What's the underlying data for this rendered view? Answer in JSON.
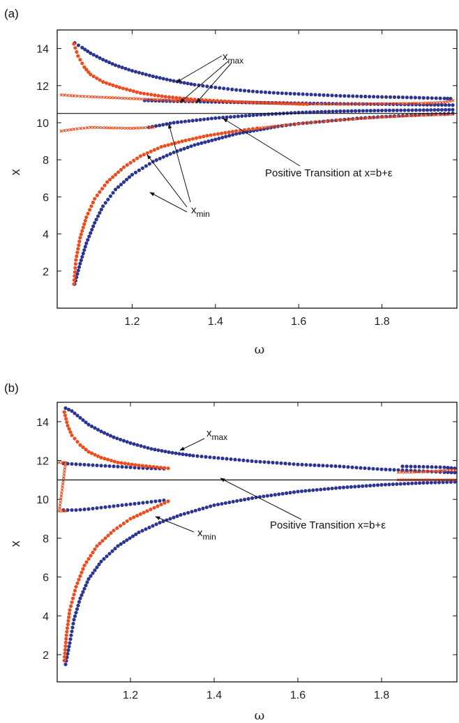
{
  "chart_data": [
    {
      "type": "scatter",
      "panel_label": "(a)",
      "xlabel": "ω",
      "ylabel": "x",
      "xlim": [
        1.02,
        1.98
      ],
      "ylim": [
        0,
        15
      ],
      "xticks": [
        1.2,
        1.4,
        1.6,
        1.8
      ],
      "yticks": [
        2,
        4,
        6,
        8,
        10,
        12,
        14
      ],
      "hline_y": 10.5,
      "series_colors": {
        "blue": "#2a3591",
        "orange": "#ee4b1e"
      },
      "series": [
        {
          "marker": "dot",
          "color": "blue",
          "points": [
            [
              1.062,
              14.3
            ],
            [
              1.08,
              14.05
            ],
            [
              1.1,
              13.75
            ],
            [
              1.13,
              13.4
            ],
            [
              1.16,
              13.1
            ],
            [
              1.2,
              12.8
            ],
            [
              1.25,
              12.5
            ],
            [
              1.3,
              12.25
            ],
            [
              1.35,
              12.05
            ],
            [
              1.4,
              11.9
            ],
            [
              1.45,
              11.77
            ],
            [
              1.5,
              11.67
            ],
            [
              1.55,
              11.6
            ],
            [
              1.6,
              11.55
            ],
            [
              1.65,
              11.5
            ],
            [
              1.7,
              11.45
            ],
            [
              1.75,
              11.42
            ],
            [
              1.8,
              11.39
            ],
            [
              1.85,
              11.37
            ],
            [
              1.9,
              11.34
            ],
            [
              1.95,
              11.31
            ],
            [
              1.965,
              11.3
            ]
          ]
        },
        {
          "marker": "dot",
          "color": "blue",
          "points": [
            [
              1.062,
              1.3
            ],
            [
              1.075,
              2.4
            ],
            [
              1.09,
              3.5
            ],
            [
              1.11,
              4.6
            ],
            [
              1.13,
              5.5
            ],
            [
              1.16,
              6.4
            ],
            [
              1.2,
              7.2
            ],
            [
              1.25,
              7.9
            ],
            [
              1.3,
              8.4
            ],
            [
              1.35,
              8.8
            ],
            [
              1.4,
              9.1
            ],
            [
              1.45,
              9.4
            ],
            [
              1.5,
              9.6
            ],
            [
              1.55,
              9.8
            ],
            [
              1.6,
              9.95
            ],
            [
              1.65,
              10.05
            ],
            [
              1.7,
              10.15
            ],
            [
              1.75,
              10.25
            ],
            [
              1.8,
              10.32
            ],
            [
              1.85,
              10.38
            ],
            [
              1.9,
              10.44
            ],
            [
              1.95,
              10.48
            ],
            [
              1.97,
              10.5
            ]
          ]
        },
        {
          "marker": "dot",
          "color": "blue",
          "points": [
            [
              1.23,
              11.2
            ],
            [
              1.3,
              11.16
            ],
            [
              1.4,
              11.12
            ],
            [
              1.5,
              11.08
            ],
            [
              1.6,
              11.05
            ],
            [
              1.7,
              11.02
            ],
            [
              1.8,
              11.0
            ],
            [
              1.9,
              10.97
            ],
            [
              1.97,
              10.95
            ]
          ]
        },
        {
          "marker": "dot",
          "color": "blue",
          "points": [
            [
              1.24,
              9.75
            ],
            [
              1.3,
              10.0
            ],
            [
              1.4,
              10.25
            ],
            [
              1.5,
              10.42
            ],
            [
              1.6,
              10.55
            ],
            [
              1.7,
              10.62
            ],
            [
              1.8,
              10.66
            ],
            [
              1.9,
              10.68
            ],
            [
              1.97,
              10.7
            ]
          ]
        },
        {
          "marker": "dot",
          "color": "orange",
          "points": [
            [
              1.06,
              14.25
            ],
            [
              1.07,
              13.6
            ],
            [
              1.085,
              13.0
            ],
            [
              1.1,
              12.6
            ],
            [
              1.13,
              12.2
            ],
            [
              1.17,
              11.9
            ],
            [
              1.22,
              11.6
            ],
            [
              1.28,
              11.4
            ],
            [
              1.35,
              11.25
            ],
            [
              1.45,
              11.12
            ],
            [
              1.55,
              11.05
            ],
            [
              1.62,
              11.0
            ]
          ]
        },
        {
          "marker": "dot",
          "color": "orange",
          "points": [
            [
              1.06,
              1.3
            ],
            [
              1.065,
              2.6
            ],
            [
              1.075,
              3.8
            ],
            [
              1.09,
              4.9
            ],
            [
              1.11,
              5.9
            ],
            [
              1.14,
              6.8
            ],
            [
              1.18,
              7.6
            ],
            [
              1.22,
              8.2
            ],
            [
              1.27,
              8.7
            ],
            [
              1.32,
              9.0
            ],
            [
              1.38,
              9.3
            ],
            [
              1.45,
              9.55
            ],
            [
              1.5,
              9.7
            ]
          ]
        },
        {
          "marker": "cross",
          "color": "orange",
          "points": [
            [
              1.03,
              11.5
            ],
            [
              1.06,
              11.45
            ],
            [
              1.1,
              11.4
            ],
            [
              1.15,
              11.35
            ],
            [
              1.2,
              11.3
            ],
            [
              1.25,
              11.25
            ],
            [
              1.3,
              11.2
            ],
            [
              1.35,
              11.15
            ]
          ]
        },
        {
          "marker": "cross",
          "color": "orange",
          "points": [
            [
              1.03,
              9.55
            ],
            [
              1.06,
              9.65
            ],
            [
              1.1,
              9.75
            ],
            [
              1.15,
              9.72
            ],
            [
              1.2,
              9.7
            ],
            [
              1.25,
              9.75
            ]
          ]
        },
        {
          "marker": "cross",
          "color": "orange",
          "points": [
            [
              1.5,
              9.7
            ],
            [
              1.6,
              9.95
            ],
            [
              1.7,
              10.15
            ],
            [
              1.8,
              10.3
            ],
            [
              1.9,
              10.4
            ],
            [
              1.97,
              10.45
            ]
          ]
        },
        {
          "marker": "cross",
          "color": "orange",
          "points": [
            [
              1.6,
              11.0
            ],
            [
              1.7,
              11.0
            ],
            [
              1.8,
              11.02
            ],
            [
              1.9,
              11.05
            ],
            [
              1.95,
              11.1
            ],
            [
              1.97,
              11.2
            ]
          ]
        }
      ],
      "annotations": [
        {
          "text": "x",
          "sub": "max"
        },
        {
          "text": "x",
          "sub": "min"
        },
        {
          "text": "Positive Transition at x=b+ε"
        }
      ]
    },
    {
      "type": "scatter",
      "panel_label": "(b)",
      "xlabel": "ω",
      "ylabel": "x",
      "xlim": [
        1.025,
        1.98
      ],
      "ylim": [
        0.6,
        15
      ],
      "xticks": [
        1.2,
        1.4,
        1.6,
        1.8
      ],
      "yticks": [
        2,
        4,
        6,
        8,
        10,
        12,
        14
      ],
      "hline_y": 11.0,
      "series_colors": {
        "blue": "#2a3591",
        "orange": "#ee4b1e"
      },
      "series": [
        {
          "marker": "dot",
          "color": "blue",
          "points": [
            [
              1.045,
              14.7
            ],
            [
              1.06,
              14.55
            ],
            [
              1.08,
              14.2
            ],
            [
              1.1,
              13.85
            ],
            [
              1.13,
              13.5
            ],
            [
              1.16,
              13.2
            ],
            [
              1.2,
              12.9
            ],
            [
              1.25,
              12.6
            ],
            [
              1.3,
              12.4
            ],
            [
              1.35,
              12.25
            ],
            [
              1.4,
              12.15
            ],
            [
              1.45,
              12.05
            ],
            [
              1.5,
              11.95
            ],
            [
              1.55,
              11.88
            ],
            [
              1.6,
              11.8
            ],
            [
              1.65,
              11.75
            ],
            [
              1.7,
              11.7
            ],
            [
              1.75,
              11.62
            ],
            [
              1.8,
              11.55
            ],
            [
              1.85,
              11.5
            ],
            [
              1.9,
              11.45
            ],
            [
              1.95,
              11.4
            ],
            [
              1.975,
              11.38
            ]
          ]
        },
        {
          "marker": "dot",
          "color": "blue",
          "points": [
            [
              1.045,
              1.5
            ],
            [
              1.055,
              2.6
            ],
            [
              1.065,
              3.8
            ],
            [
              1.08,
              4.9
            ],
            [
              1.1,
              5.9
            ],
            [
              1.13,
              6.8
            ],
            [
              1.17,
              7.6
            ],
            [
              1.22,
              8.3
            ],
            [
              1.27,
              8.8
            ],
            [
              1.32,
              9.2
            ],
            [
              1.4,
              9.7
            ],
            [
              1.5,
              10.1
            ],
            [
              1.6,
              10.4
            ],
            [
              1.7,
              10.6
            ],
            [
              1.8,
              10.75
            ],
            [
              1.9,
              10.85
            ],
            [
              1.975,
              10.9
            ]
          ]
        },
        {
          "marker": "dot",
          "color": "blue",
          "points": [
            [
              1.04,
              11.85
            ],
            [
              1.08,
              11.8
            ],
            [
              1.12,
              11.75
            ],
            [
              1.16,
              11.7
            ],
            [
              1.2,
              11.65
            ],
            [
              1.24,
              11.6
            ],
            [
              1.28,
              11.58
            ]
          ]
        },
        {
          "marker": "dot",
          "color": "blue",
          "points": [
            [
              1.04,
              9.45
            ],
            [
              1.07,
              9.45
            ],
            [
              1.1,
              9.5
            ],
            [
              1.14,
              9.6
            ],
            [
              1.18,
              9.7
            ],
            [
              1.22,
              9.8
            ],
            [
              1.26,
              9.9
            ],
            [
              1.28,
              9.95
            ]
          ]
        },
        {
          "marker": "dot",
          "color": "blue",
          "points": [
            [
              1.85,
              11.7
            ],
            [
              1.9,
              11.68
            ],
            [
              1.95,
              11.65
            ],
            [
              1.975,
              11.6
            ]
          ]
        },
        {
          "marker": "dot",
          "color": "orange",
          "points": [
            [
              1.042,
              14.5
            ],
            [
              1.05,
              13.8
            ],
            [
              1.06,
              13.3
            ],
            [
              1.08,
              12.8
            ],
            [
              1.1,
              12.45
            ],
            [
              1.13,
              12.15
            ],
            [
              1.17,
              11.9
            ],
            [
              1.22,
              11.75
            ],
            [
              1.29,
              11.6
            ]
          ]
        },
        {
          "marker": "dot",
          "color": "orange",
          "points": [
            [
              1.042,
              1.7
            ],
            [
              1.047,
              3.0
            ],
            [
              1.055,
              4.3
            ],
            [
              1.07,
              5.5
            ],
            [
              1.09,
              6.6
            ],
            [
              1.12,
              7.6
            ],
            [
              1.16,
              8.4
            ],
            [
              1.2,
              9.0
            ],
            [
              1.24,
              9.4
            ],
            [
              1.29,
              9.9
            ]
          ]
        },
        {
          "marker": "cross",
          "color": "orange",
          "points": [
            [
              1.03,
              11.9
            ],
            [
              1.045,
              11.9
            ],
            [
              1.03,
              9.4
            ],
            [
              1.045,
              9.4
            ]
          ]
        },
        {
          "marker": "cross",
          "color": "orange",
          "points": [
            [
              1.84,
              11.4
            ],
            [
              1.87,
              11.4
            ],
            [
              1.9,
              11.42
            ],
            [
              1.93,
              11.45
            ],
            [
              1.96,
              11.5
            ],
            [
              1.975,
              11.5
            ]
          ]
        },
        {
          "marker": "cross",
          "color": "orange",
          "points": [
            [
              1.84,
              11.0
            ],
            [
              1.87,
              11.0
            ],
            [
              1.9,
              11.0
            ],
            [
              1.93,
              11.0
            ],
            [
              1.96,
              11.0
            ],
            [
              1.975,
              11.0
            ]
          ]
        }
      ],
      "annotations": [
        {
          "text": "x",
          "sub": "max"
        },
        {
          "text": "x",
          "sub": "min"
        },
        {
          "text": "Positive Transition x=b+ε"
        }
      ]
    }
  ]
}
